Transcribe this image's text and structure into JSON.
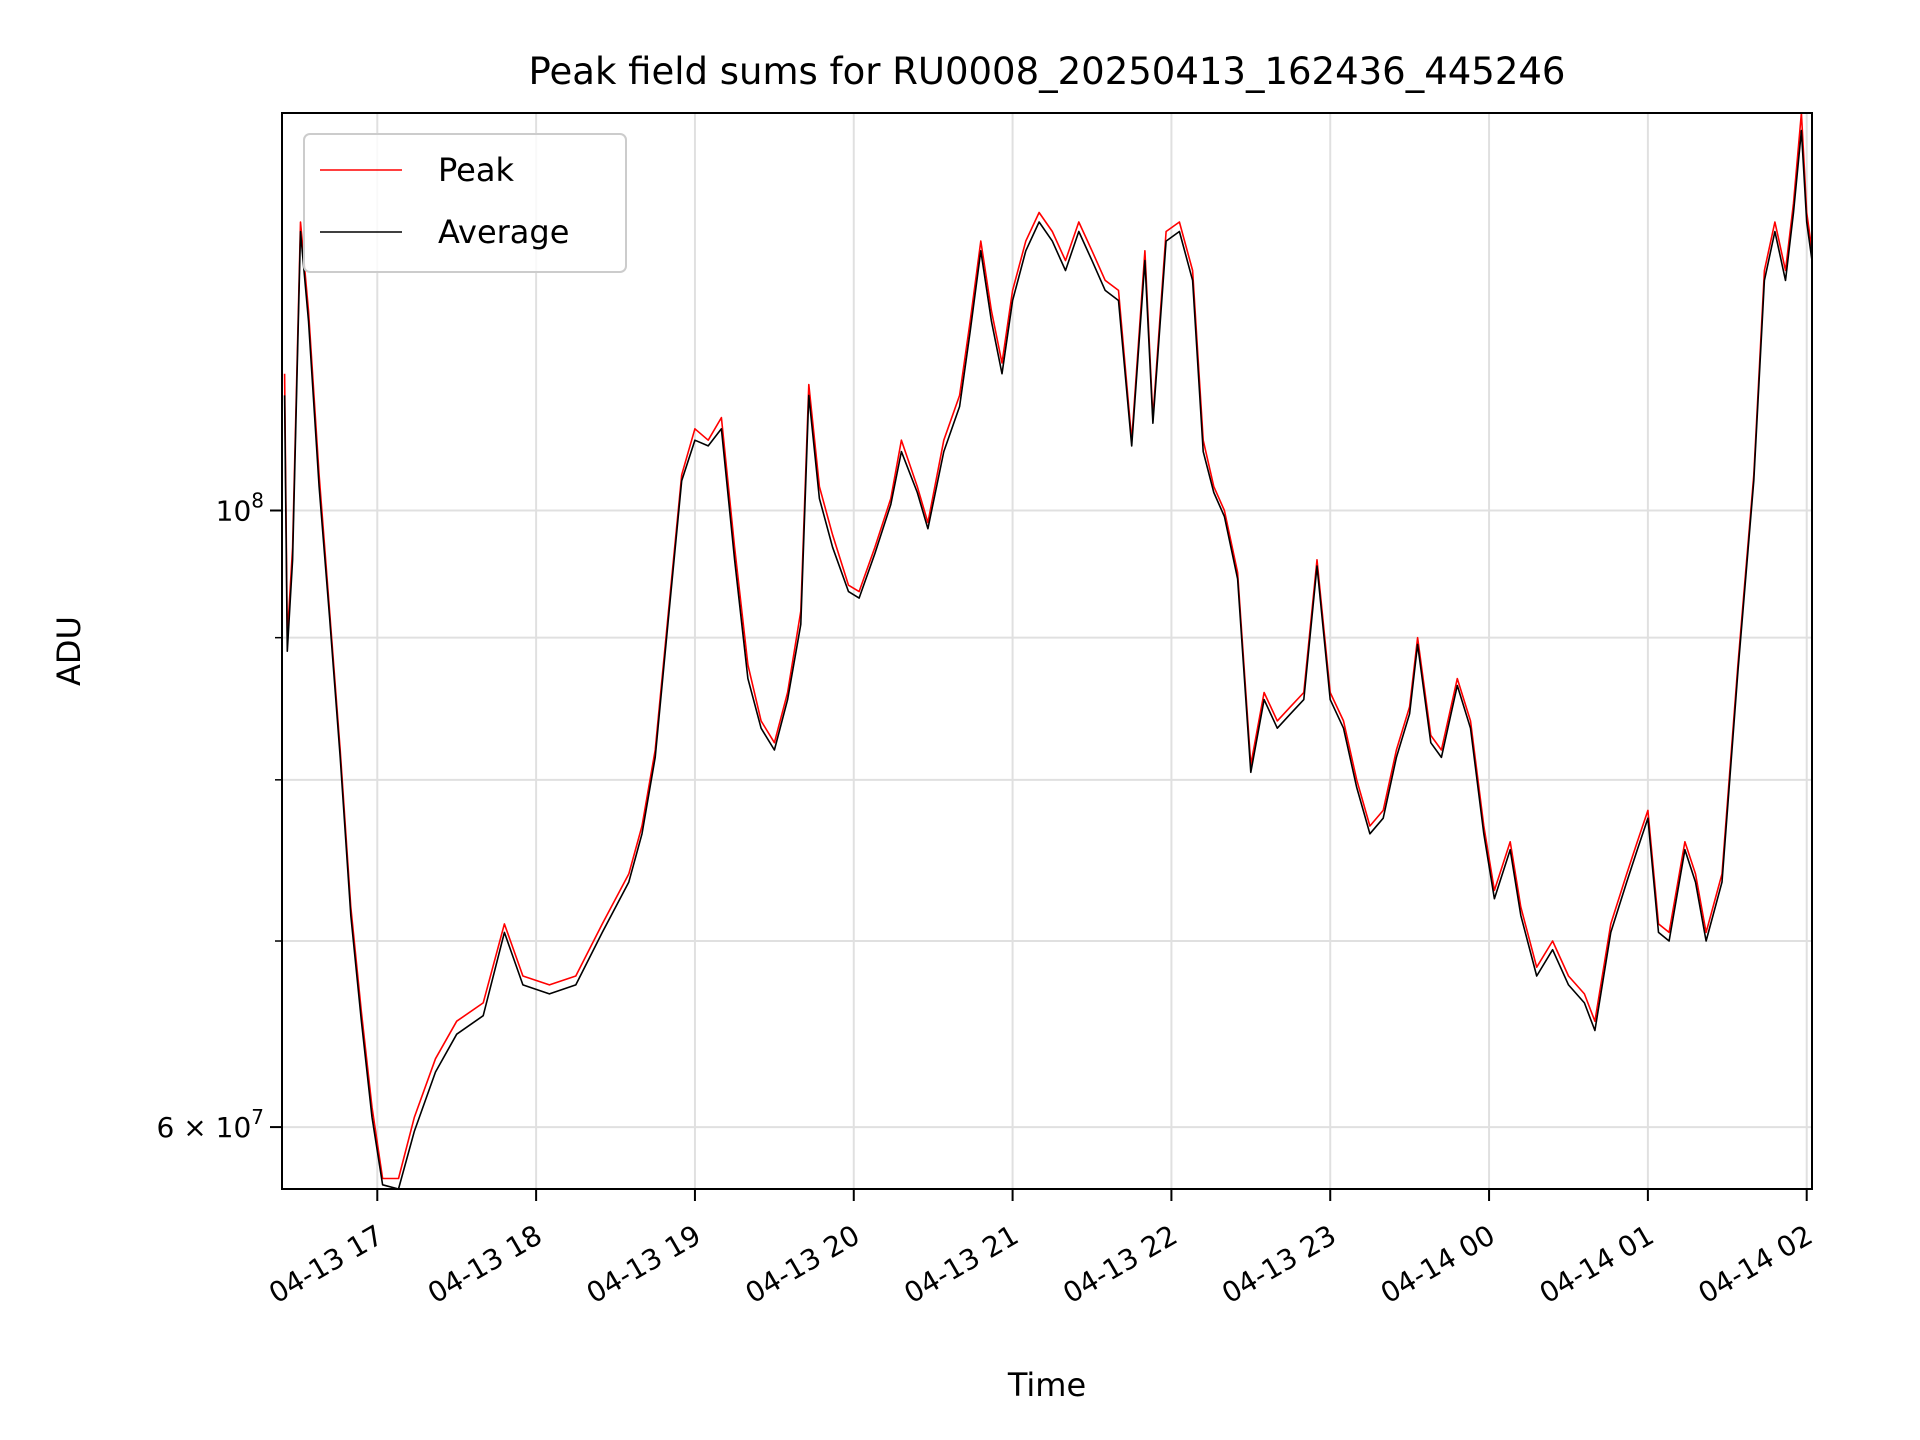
{
  "chart_data": {
    "type": "line",
    "title": "Peak field sums for RU0008_20250413_162436_445246",
    "xlabel": "Time",
    "ylabel": "ADU",
    "yscale": "log",
    "grid": true,
    "legend_position": "top-left",
    "xlim": [
      "2025-04-13 16:24",
      "2025-04-14 02:02"
    ],
    "ylim": [
      57000000,
      139000000
    ],
    "x_ticks": [
      "04-13 17",
      "04-13 18",
      "04-13 19",
      "04-13 20",
      "04-13 21",
      "04-13 22",
      "04-13 23",
      "04-14 00",
      "04-14 01",
      "04-14 02"
    ],
    "y_ticks": [
      {
        "value": 100000000,
        "label_base": "10",
        "label_exp": "8"
      },
      {
        "value": 60000000,
        "label_base": "6 × 10",
        "label_exp": "7"
      }
    ],
    "y_minor_ticks": [
      70000000,
      80000000,
      90000000
    ],
    "series": [
      {
        "name": "Peak",
        "color": "#ff0000",
        "points": [
          [
            "2025-04-13 16:25",
            112000000
          ],
          [
            "2025-04-13 16:26",
            90000000
          ],
          [
            "2025-04-13 16:28",
            97000000
          ],
          [
            "2025-04-13 16:31",
            127000000
          ],
          [
            "2025-04-13 16:34",
            118000000
          ],
          [
            "2025-04-13 16:38",
            103000000
          ],
          [
            "2025-04-13 16:42",
            92000000
          ],
          [
            "2025-04-13 16:46",
            82000000
          ],
          [
            "2025-04-13 16:50",
            72000000
          ],
          [
            "2025-04-13 16:54",
            66000000
          ],
          [
            "2025-04-13 16:58",
            61000000
          ],
          [
            "2025-04-13 17:02",
            57500000
          ],
          [
            "2025-04-13 17:08",
            57500000
          ],
          [
            "2025-04-13 17:14",
            60500000
          ],
          [
            "2025-04-13 17:22",
            63500000
          ],
          [
            "2025-04-13 17:30",
            65500000
          ],
          [
            "2025-04-13 17:40",
            66500000
          ],
          [
            "2025-04-13 17:48",
            71000000
          ],
          [
            "2025-04-13 17:55",
            68000000
          ],
          [
            "2025-04-13 18:05",
            67500000
          ],
          [
            "2025-04-13 18:15",
            68000000
          ],
          [
            "2025-04-13 18:25",
            71000000
          ],
          [
            "2025-04-13 18:35",
            74000000
          ],
          [
            "2025-04-13 18:40",
            77000000
          ],
          [
            "2025-04-13 18:45",
            82000000
          ],
          [
            "2025-04-13 18:50",
            92000000
          ],
          [
            "2025-04-13 18:55",
            103000000
          ],
          [
            "2025-04-13 19:00",
            107000000
          ],
          [
            "2025-04-13 19:05",
            106000000
          ],
          [
            "2025-04-13 19:10",
            108000000
          ],
          [
            "2025-04-13 19:15",
            97000000
          ],
          [
            "2025-04-13 19:20",
            88000000
          ],
          [
            "2025-04-13 19:25",
            84000000
          ],
          [
            "2025-04-13 19:30",
            82500000
          ],
          [
            "2025-04-13 19:35",
            86000000
          ],
          [
            "2025-04-13 19:40",
            92000000
          ],
          [
            "2025-04-13 19:43",
            111000000
          ],
          [
            "2025-04-13 19:47",
            102000000
          ],
          [
            "2025-04-13 19:52",
            98000000
          ],
          [
            "2025-04-13 19:58",
            94000000
          ],
          [
            "2025-04-13 20:02",
            93500000
          ],
          [
            "2025-04-13 20:08",
            97000000
          ],
          [
            "2025-04-13 20:14",
            101000000
          ],
          [
            "2025-04-13 20:18",
            106000000
          ],
          [
            "2025-04-13 20:24",
            102000000
          ],
          [
            "2025-04-13 20:28",
            99000000
          ],
          [
            "2025-04-13 20:34",
            106000000
          ],
          [
            "2025-04-13 20:40",
            110000000
          ],
          [
            "2025-04-13 20:44",
            117000000
          ],
          [
            "2025-04-13 20:48",
            125000000
          ],
          [
            "2025-04-13 20:52",
            118000000
          ],
          [
            "2025-04-13 20:56",
            113000000
          ],
          [
            "2025-04-13 21:00",
            120000000
          ],
          [
            "2025-04-13 21:05",
            125000000
          ],
          [
            "2025-04-13 21:10",
            128000000
          ],
          [
            "2025-04-13 21:15",
            126000000
          ],
          [
            "2025-04-13 21:20",
            123000000
          ],
          [
            "2025-04-13 21:25",
            127000000
          ],
          [
            "2025-04-13 21:30",
            124000000
          ],
          [
            "2025-04-13 21:35",
            121000000
          ],
          [
            "2025-04-13 21:40",
            120000000
          ],
          [
            "2025-04-13 21:45",
            106000000
          ],
          [
            "2025-04-13 21:50",
            124000000
          ],
          [
            "2025-04-13 21:53",
            108000000
          ],
          [
            "2025-04-13 21:58",
            126000000
          ],
          [
            "2025-04-13 22:03",
            127000000
          ],
          [
            "2025-04-13 22:08",
            122000000
          ],
          [
            "2025-04-13 22:12",
            106000000
          ],
          [
            "2025-04-13 22:16",
            102000000
          ],
          [
            "2025-04-13 22:20",
            100000000
          ],
          [
            "2025-04-13 22:25",
            95000000
          ],
          [
            "2025-04-13 22:30",
            81000000
          ],
          [
            "2025-04-13 22:35",
            86000000
          ],
          [
            "2025-04-13 22:40",
            84000000
          ],
          [
            "2025-04-13 22:45",
            85000000
          ],
          [
            "2025-04-13 22:50",
            86000000
          ],
          [
            "2025-04-13 22:55",
            96000000
          ],
          [
            "2025-04-13 23:00",
            86000000
          ],
          [
            "2025-04-13 23:05",
            84000000
          ],
          [
            "2025-04-13 23:10",
            80000000
          ],
          [
            "2025-04-13 23:15",
            77000000
          ],
          [
            "2025-04-13 23:20",
            78000000
          ],
          [
            "2025-04-13 23:25",
            82000000
          ],
          [
            "2025-04-13 23:30",
            85000000
          ],
          [
            "2025-04-13 23:33",
            90000000
          ],
          [
            "2025-04-13 23:38",
            83000000
          ],
          [
            "2025-04-13 23:42",
            82000000
          ],
          [
            "2025-04-13 23:48",
            87000000
          ],
          [
            "2025-04-13 23:53",
            84000000
          ],
          [
            "2025-04-13 23:58",
            77000000
          ],
          [
            "2025-04-14 00:02",
            73000000
          ],
          [
            "2025-04-14 00:08",
            76000000
          ],
          [
            "2025-04-14 00:12",
            72000000
          ],
          [
            "2025-04-14 00:18",
            68500000
          ],
          [
            "2025-04-14 00:24",
            70000000
          ],
          [
            "2025-04-14 00:30",
            68000000
          ],
          [
            "2025-04-14 00:36",
            67000000
          ],
          [
            "2025-04-14 00:40",
            65500000
          ],
          [
            "2025-04-14 00:46",
            71000000
          ],
          [
            "2025-04-14 00:52",
            74000000
          ],
          [
            "2025-04-14 00:56",
            76000000
          ],
          [
            "2025-04-14 01:00",
            78000000
          ],
          [
            "2025-04-14 01:04",
            71000000
          ],
          [
            "2025-04-14 01:08",
            70500000
          ],
          [
            "2025-04-14 01:14",
            76000000
          ],
          [
            "2025-04-14 01:18",
            74000000
          ],
          [
            "2025-04-14 01:22",
            70500000
          ],
          [
            "2025-04-14 01:28",
            74000000
          ],
          [
            "2025-04-14 01:34",
            88000000
          ],
          [
            "2025-04-14 01:40",
            103000000
          ],
          [
            "2025-04-14 01:44",
            122000000
          ],
          [
            "2025-04-14 01:48",
            127000000
          ],
          [
            "2025-04-14 01:52",
            122000000
          ],
          [
            "2025-04-14 01:55",
            129000000
          ],
          [
            "2025-04-14 01:58",
            139000000
          ],
          [
            "2025-04-14 02:00",
            128000000
          ],
          [
            "2025-04-14 02:02",
            124000000
          ]
        ]
      },
      {
        "name": "Average",
        "color": "#000000",
        "points": [
          [
            "2025-04-13 16:25",
            110000000
          ],
          [
            "2025-04-13 16:26",
            89000000
          ],
          [
            "2025-04-13 16:28",
            96000000
          ],
          [
            "2025-04-13 16:31",
            126000000
          ],
          [
            "2025-04-13 16:34",
            117000000
          ],
          [
            "2025-04-13 16:38",
            102000000
          ],
          [
            "2025-04-13 16:42",
            91500000
          ],
          [
            "2025-04-13 16:46",
            81500000
          ],
          [
            "2025-04-13 16:50",
            71500000
          ],
          [
            "2025-04-13 16:54",
            65500000
          ],
          [
            "2025-04-13 16:58",
            60500000
          ],
          [
            "2025-04-13 17:02",
            57200000
          ],
          [
            "2025-04-13 17:08",
            57000000
          ],
          [
            "2025-04-13 17:14",
            59800000
          ],
          [
            "2025-04-13 17:22",
            62800000
          ],
          [
            "2025-04-13 17:30",
            64800000
          ],
          [
            "2025-04-13 17:40",
            65800000
          ],
          [
            "2025-04-13 17:48",
            70500000
          ],
          [
            "2025-04-13 17:55",
            67500000
          ],
          [
            "2025-04-13 18:05",
            67000000
          ],
          [
            "2025-04-13 18:15",
            67500000
          ],
          [
            "2025-04-13 18:25",
            70500000
          ],
          [
            "2025-04-13 18:35",
            73500000
          ],
          [
            "2025-04-13 18:40",
            76500000
          ],
          [
            "2025-04-13 18:45",
            81500000
          ],
          [
            "2025-04-13 18:50",
            91500000
          ],
          [
            "2025-04-13 18:55",
            102500000
          ],
          [
            "2025-04-13 19:00",
            106000000
          ],
          [
            "2025-04-13 19:05",
            105500000
          ],
          [
            "2025-04-13 19:10",
            107000000
          ],
          [
            "2025-04-13 19:15",
            96000000
          ],
          [
            "2025-04-13 19:20",
            87000000
          ],
          [
            "2025-04-13 19:25",
            83500000
          ],
          [
            "2025-04-13 19:30",
            82000000
          ],
          [
            "2025-04-13 19:35",
            85500000
          ],
          [
            "2025-04-13 19:40",
            91000000
          ],
          [
            "2025-04-13 19:43",
            110000000
          ],
          [
            "2025-04-13 19:47",
            101000000
          ],
          [
            "2025-04-13 19:52",
            97000000
          ],
          [
            "2025-04-13 19:58",
            93500000
          ],
          [
            "2025-04-13 20:02",
            93000000
          ],
          [
            "2025-04-13 20:08",
            96500000
          ],
          [
            "2025-04-13 20:14",
            100500000
          ],
          [
            "2025-04-13 20:18",
            105000000
          ],
          [
            "2025-04-13 20:24",
            101500000
          ],
          [
            "2025-04-13 20:28",
            98500000
          ],
          [
            "2025-04-13 20:34",
            105000000
          ],
          [
            "2025-04-13 20:40",
            109000000
          ],
          [
            "2025-04-13 20:44",
            116000000
          ],
          [
            "2025-04-13 20:48",
            124000000
          ],
          [
            "2025-04-13 20:52",
            117000000
          ],
          [
            "2025-04-13 20:56",
            112000000
          ],
          [
            "2025-04-13 21:00",
            119000000
          ],
          [
            "2025-04-13 21:05",
            124000000
          ],
          [
            "2025-04-13 21:10",
            127000000
          ],
          [
            "2025-04-13 21:15",
            125000000
          ],
          [
            "2025-04-13 21:20",
            122000000
          ],
          [
            "2025-04-13 21:25",
            126000000
          ],
          [
            "2025-04-13 21:30",
            123000000
          ],
          [
            "2025-04-13 21:35",
            120000000
          ],
          [
            "2025-04-13 21:40",
            119000000
          ],
          [
            "2025-04-13 21:45",
            105500000
          ],
          [
            "2025-04-13 21:50",
            123000000
          ],
          [
            "2025-04-13 21:53",
            107500000
          ],
          [
            "2025-04-13 21:58",
            125000000
          ],
          [
            "2025-04-13 22:03",
            126000000
          ],
          [
            "2025-04-13 22:08",
            121000000
          ],
          [
            "2025-04-13 22:12",
            105000000
          ],
          [
            "2025-04-13 22:16",
            101500000
          ],
          [
            "2025-04-13 22:20",
            99500000
          ],
          [
            "2025-04-13 22:25",
            94500000
          ],
          [
            "2025-04-13 22:30",
            80500000
          ],
          [
            "2025-04-13 22:35",
            85500000
          ],
          [
            "2025-04-13 22:40",
            83500000
          ],
          [
            "2025-04-13 22:45",
            84500000
          ],
          [
            "2025-04-13 22:50",
            85500000
          ],
          [
            "2025-04-13 22:55",
            95500000
          ],
          [
            "2025-04-13 23:00",
            85500000
          ],
          [
            "2025-04-13 23:05",
            83500000
          ],
          [
            "2025-04-13 23:10",
            79500000
          ],
          [
            "2025-04-13 23:15",
            76500000
          ],
          [
            "2025-04-13 23:20",
            77500000
          ],
          [
            "2025-04-13 23:25",
            81500000
          ],
          [
            "2025-04-13 23:30",
            84500000
          ],
          [
            "2025-04-13 23:33",
            89500000
          ],
          [
            "2025-04-13 23:38",
            82500000
          ],
          [
            "2025-04-13 23:42",
            81500000
          ],
          [
            "2025-04-13 23:48",
            86500000
          ],
          [
            "2025-04-13 23:53",
            83500000
          ],
          [
            "2025-04-13 23:58",
            76500000
          ],
          [
            "2025-04-14 00:02",
            72500000
          ],
          [
            "2025-04-14 00:08",
            75500000
          ],
          [
            "2025-04-14 00:12",
            71500000
          ],
          [
            "2025-04-14 00:18",
            68000000
          ],
          [
            "2025-04-14 00:24",
            69500000
          ],
          [
            "2025-04-14 00:30",
            67500000
          ],
          [
            "2025-04-14 00:36",
            66500000
          ],
          [
            "2025-04-14 00:40",
            65000000
          ],
          [
            "2025-04-14 00:46",
            70500000
          ],
          [
            "2025-04-14 00:52",
            73500000
          ],
          [
            "2025-04-14 00:56",
            75500000
          ],
          [
            "2025-04-14 01:00",
            77500000
          ],
          [
            "2025-04-14 01:04",
            70500000
          ],
          [
            "2025-04-14 01:08",
            70000000
          ],
          [
            "2025-04-14 01:14",
            75500000
          ],
          [
            "2025-04-14 01:18",
            73500000
          ],
          [
            "2025-04-14 01:22",
            70000000
          ],
          [
            "2025-04-14 01:28",
            73500000
          ],
          [
            "2025-04-14 01:34",
            87500000
          ],
          [
            "2025-04-14 01:40",
            102500000
          ],
          [
            "2025-04-14 01:44",
            121000000
          ],
          [
            "2025-04-14 01:48",
            126000000
          ],
          [
            "2025-04-14 01:52",
            121000000
          ],
          [
            "2025-04-14 01:55",
            128000000
          ],
          [
            "2025-04-14 01:58",
            137000000
          ],
          [
            "2025-04-14 02:00",
            127000000
          ],
          [
            "2025-04-14 02:02",
            123000000
          ]
        ]
      }
    ]
  }
}
